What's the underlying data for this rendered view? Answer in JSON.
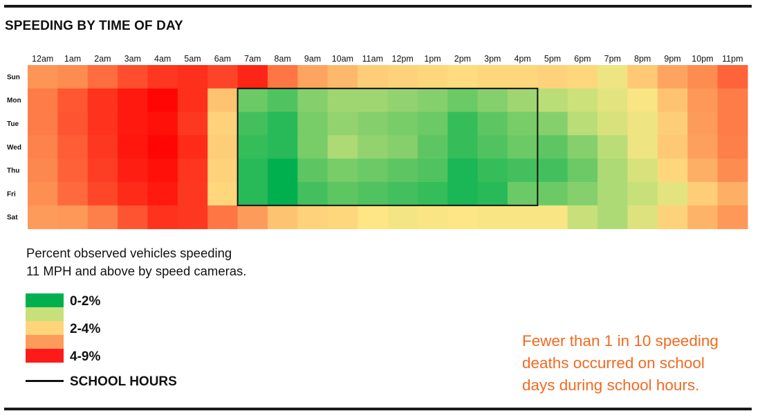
{
  "title": "SPEEDING BY TIME OF DAY",
  "chart_data": {
    "type": "heatmap",
    "title": "SPEEDING BY TIME OF DAY",
    "x": [
      "12am",
      "1am",
      "2am",
      "3am",
      "4am",
      "5am",
      "6am",
      "7am",
      "8am",
      "9am",
      "10am",
      "11am",
      "12pm",
      "1pm",
      "2pm",
      "3pm",
      "4pm",
      "5pm",
      "6pm",
      "7pm",
      "8pm",
      "9pm",
      "10pm",
      "11pm"
    ],
    "y": [
      "Sun",
      "Mon",
      "Tue",
      "Wed",
      "Thu",
      "Fri",
      "Sat"
    ],
    "values": [
      [
        4.2,
        4.5,
        5.5,
        6.5,
        7.2,
        7.5,
        6.8,
        7.8,
        5.2,
        3.8,
        3.4,
        3.0,
        2.9,
        2.8,
        2.7,
        2.8,
        2.8,
        2.9,
        2.8,
        2.2,
        3.1,
        3.8,
        4.5,
        5.8
      ],
      [
        5.0,
        6.2,
        7.4,
        8.2,
        8.8,
        7.5,
        3.2,
        0.8,
        0.6,
        1.0,
        1.2,
        1.2,
        1.1,
        1.0,
        0.8,
        1.0,
        1.2,
        1.4,
        1.6,
        2.0,
        2.4,
        3.2,
        4.1,
        5.0
      ],
      [
        5.0,
        6.3,
        7.4,
        8.2,
        8.5,
        7.2,
        2.9,
        0.5,
        0.3,
        0.9,
        1.1,
        1.0,
        0.9,
        0.8,
        0.4,
        0.7,
        0.9,
        1.0,
        1.4,
        1.8,
        2.2,
        3.0,
        4.0,
        5.0
      ],
      [
        4.8,
        6.0,
        7.2,
        8.3,
        8.8,
        7.6,
        3.0,
        0.4,
        0.3,
        0.9,
        1.3,
        1.1,
        1.0,
        0.7,
        0.4,
        0.6,
        0.8,
        0.7,
        1.0,
        1.4,
        2.2,
        3.1,
        3.9,
        4.9
      ],
      [
        4.6,
        5.9,
        7.0,
        8.0,
        8.5,
        7.3,
        2.9,
        0.3,
        0.0,
        0.7,
        0.9,
        0.8,
        0.7,
        0.6,
        0.2,
        0.4,
        0.5,
        0.5,
        0.8,
        1.3,
        1.8,
        2.8,
        3.6,
        4.5
      ],
      [
        4.4,
        5.6,
        6.7,
        7.6,
        8.2,
        7.2,
        2.8,
        0.3,
        0.0,
        0.5,
        0.7,
        0.6,
        0.5,
        0.4,
        0.2,
        0.3,
        0.8,
        0.8,
        1.0,
        1.3,
        1.5,
        2.0,
        3.0,
        3.6
      ],
      [
        4.0,
        4.1,
        4.9,
        6.3,
        7.4,
        7.2,
        5.2,
        4.0,
        3.2,
        2.9,
        2.8,
        2.5,
        2.3,
        2.4,
        2.5,
        2.4,
        2.4,
        2.4,
        1.5,
        1.3,
        1.9,
        2.9,
        3.5,
        4.1
      ]
    ],
    "school_hours": {
      "days": [
        "Mon",
        "Tue",
        "Wed",
        "Thu",
        "Fri"
      ],
      "start": "7am",
      "end": "4pm"
    },
    "color_scale": [
      {
        "value": 0,
        "color": "#00b04f"
      },
      {
        "value": 1.5,
        "color": "#c8e07a"
      },
      {
        "value": 2.5,
        "color": "#fee685"
      },
      {
        "value": 4,
        "color": "#fd9b5a"
      },
      {
        "value": 9,
        "color": "#ff0000"
      }
    ]
  },
  "legend": {
    "title_line1": "Percent observed vehicles speeding",
    "title_line2": "11 MPH and above by speed cameras.",
    "items": [
      {
        "label": "0-2%",
        "color": "#00b04f"
      },
      {
        "label": "",
        "color": "#c8e07a"
      },
      {
        "label": "2-4%",
        "color": "#fed57a"
      },
      {
        "label": "",
        "color": "#fd9b5a"
      },
      {
        "label": "4-9%",
        "color": "#ff1a1a"
      }
    ],
    "school_hours_label": "SCHOOL HOURS"
  },
  "note": {
    "line1": "Fewer than 1 in 10 speeding",
    "line2": "deaths occurred on school",
    "line3": "days during school hours."
  }
}
